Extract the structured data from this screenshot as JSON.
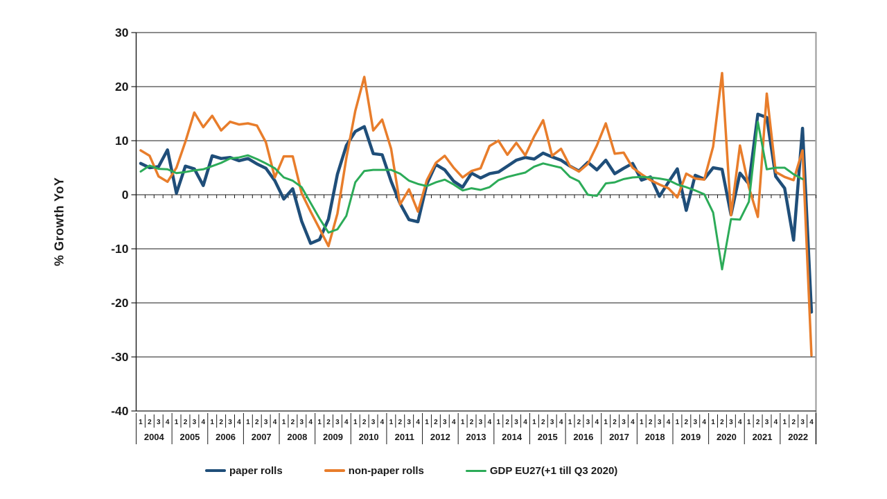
{
  "chart_data": {
    "type": "line",
    "title": "",
    "ylabel": "% Growth YoY",
    "xlabel": "",
    "ylim": [
      -40,
      30
    ],
    "yticks": [
      30,
      20,
      10,
      0,
      -10,
      -20,
      -30,
      -40
    ],
    "grid": "horizontal",
    "legend_position": "bottom",
    "quarter_labels": [
      "1",
      "2",
      "3",
      "4"
    ],
    "years": [
      "2004",
      "2005",
      "2006",
      "2007",
      "2008",
      "2009",
      "2010",
      "2011",
      "2012",
      "2013",
      "2014",
      "2015",
      "2016",
      "2017",
      "2018",
      "2019",
      "2020",
      "2021",
      "2022"
    ],
    "series": [
      {
        "name": "paper rolls",
        "color": "#1f4e79",
        "width": 4.5,
        "values": [
          5.8,
          5.0,
          5.2,
          8.3,
          0.3,
          5.3,
          4.8,
          1.7,
          7.2,
          6.7,
          6.9,
          6.3,
          6.7,
          5.7,
          4.9,
          2.6,
          -0.8,
          1.1,
          -4.9,
          -9.0,
          -8.3,
          -4.5,
          3.8,
          9.1,
          11.7,
          12.6,
          7.6,
          7.4,
          2.5,
          -1.6,
          -4.6,
          -5.0,
          2.0,
          5.6,
          4.6,
          2.5,
          1.4,
          4.0,
          3.1,
          3.9,
          4.2,
          5.3,
          6.4,
          6.9,
          6.6,
          7.7,
          7.0,
          6.4,
          5.3,
          4.4,
          6.0,
          4.6,
          6.4,
          3.9,
          4.9,
          5.8,
          2.7,
          3.3,
          -0.3,
          2.3,
          4.8,
          -2.9,
          3.6,
          2.9,
          5.0,
          4.7,
          -3.7,
          4.0,
          2.0,
          14.9,
          14.3,
          3.4,
          1.2,
          -8.4,
          12.3,
          -21.7
        ]
      },
      {
        "name": "non-paper rolls",
        "color": "#e87d2b",
        "width": 3.5,
        "values": [
          8.2,
          7.2,
          3.4,
          2.4,
          5.0,
          9.8,
          15.2,
          12.5,
          14.6,
          11.9,
          13.5,
          13.0,
          13.2,
          12.8,
          9.7,
          3.2,
          7.1,
          7.1,
          0.3,
          -3.1,
          -6.3,
          -9.5,
          -3.5,
          6.8,
          15.5,
          21.8,
          11.9,
          13.9,
          8.5,
          -1.8,
          1.0,
          -3.1,
          2.7,
          5.9,
          7.2,
          5.0,
          3.2,
          4.4,
          4.9,
          9.0,
          10.0,
          7.4,
          9.6,
          7.3,
          10.8,
          13.8,
          7.2,
          8.5,
          5.3,
          4.3,
          5.7,
          9.1,
          13.2,
          7.6,
          7.8,
          5.0,
          3.8,
          2.7,
          1.9,
          1.2,
          -0.5,
          3.9,
          3.0,
          2.8,
          8.9,
          22.5,
          -3.8,
          9.1,
          1.4,
          -4.1,
          18.7,
          4.2,
          3.3,
          2.7,
          8.2,
          -29.7
        ]
      },
      {
        "name": "GDP EU27(+1 till Q3 2020)",
        "color": "#2cab58",
        "width": 3,
        "values": [
          4.3,
          5.4,
          4.8,
          4.7,
          4.0,
          4.2,
          4.5,
          4.7,
          5.3,
          5.9,
          6.7,
          6.9,
          7.3,
          6.6,
          5.8,
          4.9,
          3.2,
          2.6,
          1.4,
          -1.5,
          -4.4,
          -7.0,
          -6.4,
          -3.9,
          2.3,
          4.4,
          4.6,
          4.6,
          4.6,
          3.9,
          2.6,
          2.0,
          1.6,
          2.3,
          2.8,
          1.9,
          0.8,
          1.2,
          0.9,
          1.4,
          2.7,
          3.3,
          3.7,
          4.1,
          5.2,
          5.8,
          5.4,
          5.0,
          3.3,
          2.5,
          0.0,
          -0.2,
          2.1,
          2.3,
          2.9,
          3.2,
          3.3,
          3.2,
          3.0,
          2.7,
          1.9,
          1.4,
          0.8,
          0.1,
          -3.3,
          -13.8,
          -4.5,
          -4.6,
          -1.3,
          13.5,
          4.7,
          5.0,
          5.0,
          3.8,
          2.9,
          null
        ]
      }
    ]
  },
  "style": {
    "grid_color": "#1a1a1a",
    "axis_color": "#1a1a1a",
    "right_border_color": "#a0a0a0",
    "text_color": "#1a1a1a"
  }
}
